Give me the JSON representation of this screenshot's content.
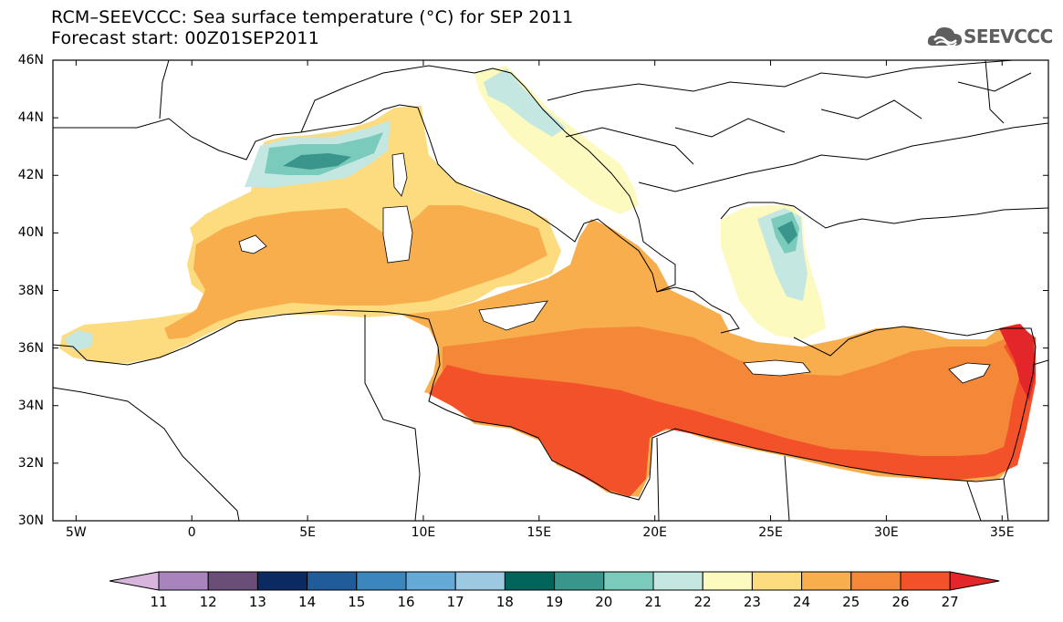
{
  "title_line1": "RCM–SEEVCCC: Sea surface temperature (°C) for SEP 2011",
  "title_line2": "Forecast start: 00Z01SEP2011",
  "logo_text": "SEEVCCC",
  "map": {
    "lat_labels": [
      "46N",
      "44N",
      "42N",
      "40N",
      "38N",
      "36N",
      "34N",
      "32N",
      "30N"
    ],
    "lon_labels": [
      "5W",
      "0",
      "5E",
      "10E",
      "15E",
      "20E",
      "25E",
      "30E",
      "35E"
    ],
    "extent": {
      "lon": [
        -6,
        37
      ],
      "lat": [
        30,
        46
      ]
    }
  },
  "colorbar": {
    "levels": [
      "11",
      "12",
      "13",
      "14",
      "15",
      "16",
      "17",
      "18",
      "19",
      "20",
      "21",
      "22",
      "23",
      "24",
      "25",
      "26",
      "27"
    ],
    "colors": [
      "#d7b5dd",
      "#a884bd",
      "#6a4e78",
      "#0b2a61",
      "#1f5c99",
      "#3a86bd",
      "#65a9d6",
      "#9dc8e2",
      "#00645a",
      "#3a968c",
      "#7bcbbd",
      "#c5e7e2",
      "#fdfabf",
      "#fcdc7f",
      "#f8ae4d",
      "#f58738",
      "#f25129",
      "#e3262a"
    ]
  }
}
